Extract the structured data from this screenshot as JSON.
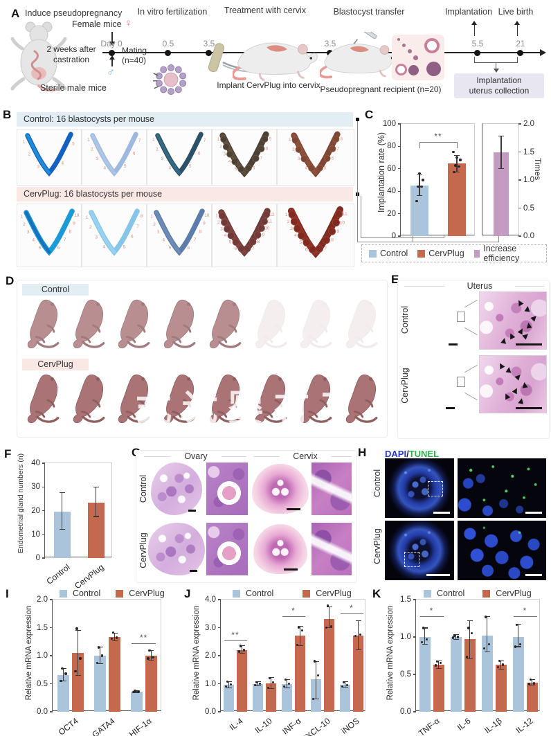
{
  "colors": {
    "control": "#a9c4db",
    "cervplug": "#c4694e",
    "increase_efficiency": "#c49bc1",
    "header_blue": "#e2edf4",
    "header_pink": "#f9e8e4",
    "dapi_blue": "#2a35d8",
    "tunel_green": "#2db34a",
    "site_number_red": "#e08a80"
  },
  "panels": {
    "A": {
      "label": "A",
      "steps": [
        "Induce pseudopregnancy",
        "In vitro fertilization",
        "Treatment with cervix",
        "Blastocyst transfer",
        "Implantation",
        "Live birth"
      ],
      "female_label": "Female mice",
      "female_symbol": "♀",
      "male_symbol": "♂",
      "castration_line1": "2 weeks after",
      "castration_line2": "castration",
      "sterile_label": "Sterile male mice",
      "day0_label": "Day 0",
      "mating_line1": "Mating",
      "mating_line2": "(n=40)",
      "timeline_points": [
        "0.5",
        "3.5",
        "3.5",
        "5.5",
        "21"
      ],
      "implant_label": "Implant CervPlug into cervix",
      "recipient_label": "Pseudopregnant recipient (n=20)",
      "collection_line1": "Implantation",
      "collection_line2": "uterus collection"
    },
    "B": {
      "label": "B",
      "rows": [
        {
          "title": "Control: 16 blastocysts per mouse",
          "theme": "blue",
          "uteri": [
            {
              "color": "#1460c0",
              "accent": "#25b2e8",
              "sites": 5,
              "beaded": false
            },
            {
              "color": "#9db9de",
              "accent": "#bcd2ea",
              "sites": 7,
              "beaded": false
            },
            {
              "color": "#2c5068",
              "accent": "#3e7d96",
              "sites": 7,
              "beaded": false
            },
            {
              "color": "#4d4034",
              "accent": "#6b5a44",
              "sites": 9,
              "beaded": true
            },
            {
              "color": "#7e4634",
              "accent": "#98593f",
              "sites": 8,
              "beaded": true
            }
          ]
        },
        {
          "title": "CervPlug: 16 blastocysts per mouse",
          "theme": "pink",
          "uteri": [
            {
              "color": "#1a9bd8",
              "accent": "#1450a8",
              "sites": 10,
              "beaded": false
            },
            {
              "color": "#85c6e8",
              "accent": "#aadcf2",
              "sites": 8,
              "beaded": false
            },
            {
              "color": "#5c7dab",
              "accent": "#7b97c0",
              "sites": 10,
              "beaded": false
            },
            {
              "color": "#6f3b3a",
              "accent": "#8a4a42",
              "sites": 12,
              "beaded": true
            },
            {
              "color": "#7e2c22",
              "accent": "#9c3a2a",
              "sites": 11,
              "beaded": true
            }
          ]
        }
      ]
    },
    "C": {
      "label": "C",
      "legend": [
        {
          "label": "Control",
          "color": "#a9c4db"
        },
        {
          "label": "CervPlug",
          "color": "#c4694e"
        },
        {
          "label": "Increase efficiency",
          "color": "#c49bc1"
        }
      ]
    },
    "D": {
      "label": "D",
      "rows": [
        {
          "title": "Control",
          "theme": "blue",
          "pups": 8,
          "faded": 3
        },
        {
          "title": "CervPlug",
          "theme": "pink",
          "pups": 8,
          "faded": 0
        }
      ],
      "watermark": "式 试 婴 有 了"
    },
    "E": {
      "label": "E",
      "title": "Uterus",
      "rows": [
        "Control",
        "CervPlug"
      ]
    },
    "F": {
      "label": "F"
    },
    "G": {
      "label": "G",
      "columns": [
        "Ovary",
        "Cervix"
      ],
      "rows": [
        "Control",
        "CervPlug"
      ]
    },
    "H": {
      "label": "H",
      "stain_blue": "DAPI",
      "stain_sep": "/",
      "stain_green": "TUNEL",
      "rows": [
        "Control",
        "CervPlug"
      ]
    },
    "I": {
      "label": "I"
    },
    "J": {
      "label": "J"
    },
    "K": {
      "label": "K"
    }
  },
  "chart_data": [
    {
      "id": "c-implantation",
      "type": "bar",
      "ylabel": "Implantation rate (%)",
      "ylim": [
        0,
        100
      ],
      "yticks": [
        0,
        20,
        40,
        60,
        80,
        100
      ],
      "tick_decimals": 0,
      "categories": [
        "Control",
        "CervPlug"
      ],
      "values": [
        45,
        65
      ],
      "errors": [
        [
          36,
          55
        ],
        [
          57,
          72
        ]
      ],
      "points": [
        [
          31,
          44,
          44,
          50,
          56
        ],
        [
          57,
          62,
          63,
          68,
          70,
          75
        ]
      ],
      "colors": [
        "#a9c4db",
        "#c4694e"
      ],
      "sig": [
        {
          "between": [
            0,
            1
          ],
          "label": "**",
          "y": 84
        }
      ]
    },
    {
      "id": "c-times",
      "type": "bar",
      "ylabel": "Times",
      "ylim": [
        0,
        2
      ],
      "yticks": [
        0,
        0.5,
        1,
        1.5,
        2
      ],
      "tick_decimals": 1,
      "axis_side": "right",
      "categories": [
        "Increase efficiency"
      ],
      "values": [
        1.5
      ],
      "errors": [
        [
          1.2,
          1.78
        ]
      ],
      "colors": [
        "#c49bc1"
      ]
    },
    {
      "id": "f-glands",
      "type": "bar",
      "ylabel": "Endometrial gland numbers (n)",
      "ylim": [
        0,
        40
      ],
      "yticks": [
        0,
        10,
        20,
        30,
        40
      ],
      "tick_decimals": 0,
      "categories": [
        "Control",
        "CervPlug"
      ],
      "values": [
        19.5,
        23.5
      ],
      "errors": [
        [
          12,
          27.5
        ],
        [
          17.5,
          30
        ]
      ],
      "colors": [
        "#a9c4db",
        "#c4694e"
      ],
      "rotate_xlabels": true
    },
    {
      "id": "i-mrna",
      "type": "bar",
      "ylabel": "Relative mRNA expression",
      "ylim": [
        0,
        2
      ],
      "yticks": [
        0,
        0.5,
        1,
        1.5,
        2
      ],
      "tick_decimals": 1,
      "categories": [
        "OCT4",
        "GATA4",
        "HIF-1α"
      ],
      "series": [
        {
          "name": "Control",
          "color": "#a9c4db",
          "values": [
            0.66,
            1.0,
            0.36
          ],
          "errors": [
            [
              0.55,
              0.77
            ],
            [
              0.86,
              1.15
            ],
            [
              0.34,
              0.38
            ]
          ],
          "points": [
            [
              0.55,
              0.68,
              0.77
            ],
            [
              0.87,
              1.0,
              1.15
            ],
            [
              0.35,
              0.36,
              0.37
            ]
          ]
        },
        {
          "name": "CervPlug",
          "color": "#c4694e",
          "values": [
            1.05,
            1.33,
            1.0
          ],
          "errors": [
            [
              0.65,
              1.45
            ],
            [
              1.27,
              1.4
            ],
            [
              0.92,
              1.09
            ]
          ],
          "points": [
            [
              0.72,
              0.95,
              1.48
            ],
            [
              1.3,
              1.32,
              1.41
            ],
            [
              0.95,
              0.97,
              1.09
            ]
          ]
        }
      ],
      "sig": [
        {
          "cat": 2,
          "label": "**",
          "y": 1.22
        }
      ],
      "rotate_xlabels": true
    },
    {
      "id": "j-mrna",
      "type": "bar",
      "ylabel": "Relative mRNA expression",
      "ylim": [
        0,
        4
      ],
      "yticks": [
        0,
        1,
        2,
        3,
        4
      ],
      "tick_decimals": 1,
      "categories": [
        "IL-4",
        "IL-10",
        "INF-α",
        "CXCL-10",
        "iNOS"
      ],
      "series": [
        {
          "name": "Control",
          "color": "#a9c4db",
          "values": [
            0.97,
            1.0,
            1.0,
            1.15,
            0.97
          ],
          "errors": [
            [
              0.85,
              1.08
            ],
            [
              0.93,
              1.07
            ],
            [
              0.85,
              1.15
            ],
            [
              0.45,
              1.8
            ],
            [
              0.88,
              1.07
            ]
          ],
          "points": [
            [
              0.9,
              0.97,
              1.08
            ],
            [
              0.95,
              1.0,
              1.05
            ],
            [
              0.9,
              1.0,
              1.15
            ],
            [
              0.45,
              1.3,
              1.8
            ],
            [
              0.9,
              0.95,
              1.05
            ]
          ]
        },
        {
          "name": "CervPlug",
          "color": "#c4694e",
          "values": [
            2.2,
            1.02,
            2.72,
            3.3,
            2.72
          ],
          "errors": [
            [
              2.08,
              2.35
            ],
            [
              0.82,
              1.22
            ],
            [
              2.35,
              3.05
            ],
            [
              3.0,
              3.75
            ],
            [
              2.2,
              3.25
            ]
          ],
          "points": [
            [
              2.15,
              2.2,
              2.35
            ],
            [
              0.85,
              1.05,
              1.2
            ],
            [
              2.38,
              2.9,
              3.0
            ],
            [
              3.0,
              3.05,
              3.78
            ],
            [
              2.7,
              2.75
            ]
          ]
        }
      ],
      "sig": [
        {
          "cat": 0,
          "label": "**",
          "y": 2.55
        },
        {
          "cat": 2,
          "label": "*",
          "y": 3.4
        },
        {
          "cat": 4,
          "label": "*",
          "y": 3.5
        }
      ],
      "rotate_xlabels": true
    },
    {
      "id": "k-mrna",
      "type": "bar",
      "ylabel": "Relative mRNA expression",
      "ylim": [
        0,
        1.5
      ],
      "yticks": [
        0,
        0.5,
        1,
        1.5
      ],
      "tick_decimals": 1,
      "categories": [
        "TNF-α",
        "IL-6",
        "IL-1β",
        "IL-12"
      ],
      "series": [
        {
          "name": "Control",
          "color": "#a9c4db",
          "values": [
            1.0,
            1.0,
            1.02,
            1.0
          ],
          "errors": [
            [
              0.9,
              1.12
            ],
            [
              0.97,
              1.03
            ],
            [
              0.8,
              1.27
            ],
            [
              0.87,
              1.17
            ]
          ],
          "points": [
            [
              0.93,
              0.97,
              1.12
            ],
            [
              0.99,
              1.0,
              1.02
            ],
            [
              0.85,
              0.9,
              1.27
            ],
            [
              0.87,
              0.9,
              1.16
            ]
          ]
        },
        {
          "name": "CervPlug",
          "color": "#c4694e",
          "values": [
            0.63,
            0.97,
            0.63,
            0.39
          ],
          "errors": [
            [
              0.58,
              0.68
            ],
            [
              0.71,
              1.22
            ],
            [
              0.57,
              0.68
            ],
            [
              0.36,
              0.43
            ]
          ],
          "points": [
            [
              0.62,
              0.65,
              0.67
            ],
            [
              0.73,
              1.05,
              1.12
            ],
            [
              0.6,
              0.63,
              0.68
            ],
            [
              0.37,
              0.38,
              0.43
            ]
          ]
        }
      ],
      "sig": [
        {
          "cat": 0,
          "label": "*",
          "y": 1.28
        },
        {
          "cat": 3,
          "label": "*",
          "y": 1.28
        }
      ],
      "rotate_xlabels": true
    }
  ]
}
